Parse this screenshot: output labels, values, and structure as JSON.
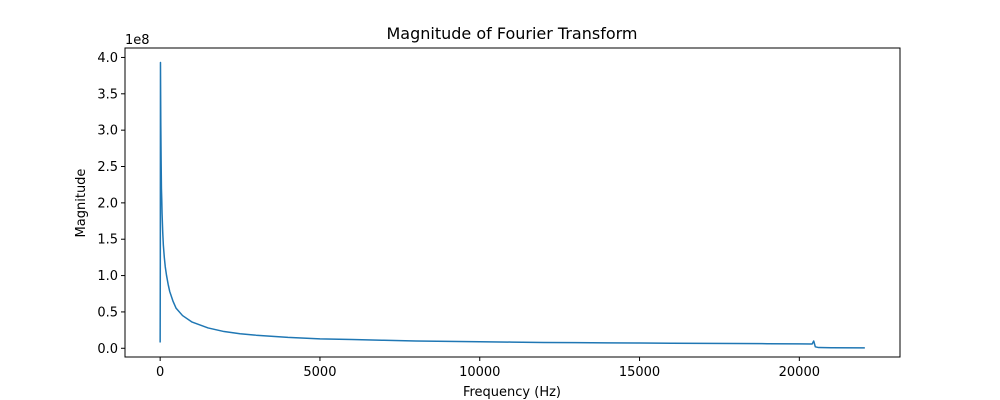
{
  "chart_data": {
    "type": "line",
    "title": "Magnitude of Fourier Transform",
    "xlabel": "Frequency (Hz)",
    "ylabel": "Magnitude",
    "y_offset_label": "1e8",
    "xlim": [
      -1100,
      23150
    ],
    "ylim": [
      -0.12,
      4.13
    ],
    "x_ticks": [
      0,
      5000,
      10000,
      15000,
      20000
    ],
    "x_tick_labels": [
      "0",
      "5000",
      "10000",
      "15000",
      "20000"
    ],
    "y_ticks": [
      0.0,
      0.5,
      1.0,
      1.5,
      2.0,
      2.5,
      3.0,
      3.5,
      4.0
    ],
    "y_tick_labels": [
      "0.0",
      "0.5",
      "1.0",
      "1.5",
      "2.0",
      "2.5",
      "3.0",
      "3.5",
      "4.0"
    ],
    "grid": false,
    "colors": {
      "line": "#1f77b4"
    },
    "series": [
      {
        "x": [
          0,
          5,
          10,
          20,
          30,
          40,
          50,
          60,
          80,
          100,
          130,
          160,
          200,
          250,
          300,
          400,
          500,
          700,
          1000,
          1500,
          2000,
          2500,
          3000,
          4000,
          5000,
          6000,
          7000,
          8000,
          9000,
          10000,
          11000,
          12000,
          13000,
          14000,
          15000,
          16000,
          17000,
          18000,
          19000,
          20000,
          20400,
          20450,
          20500,
          20600,
          21000,
          22050
        ],
        "y": [
          0.08,
          1.2,
          3.93,
          3.1,
          2.6,
          2.2,
          2.05,
          1.85,
          1.6,
          1.42,
          1.25,
          1.12,
          1.0,
          0.88,
          0.78,
          0.65,
          0.55,
          0.45,
          0.36,
          0.28,
          0.23,
          0.2,
          0.18,
          0.15,
          0.13,
          0.12,
          0.11,
          0.1,
          0.095,
          0.09,
          0.085,
          0.08,
          0.078,
          0.075,
          0.072,
          0.07,
          0.068,
          0.065,
          0.063,
          0.06,
          0.058,
          0.1,
          0.02,
          0.01,
          0.008,
          0.005
        ]
      }
    ]
  }
}
